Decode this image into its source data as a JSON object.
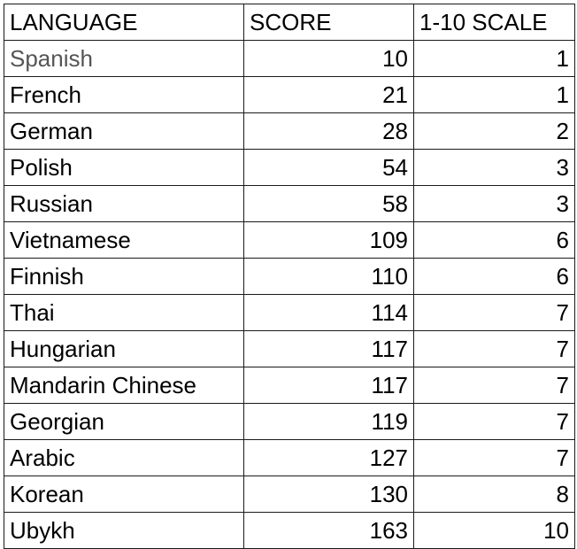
{
  "table": {
    "headers": [
      "LANGUAGE",
      "SCORE",
      "1-10 SCALE"
    ],
    "rows": [
      [
        "Spanish",
        "10",
        "1"
      ],
      [
        "French",
        "21",
        "1"
      ],
      [
        "German",
        "28",
        "2"
      ],
      [
        "Polish",
        "54",
        "3"
      ],
      [
        "Russian",
        "58",
        "3"
      ],
      [
        "Vietnamese",
        "109",
        "6"
      ],
      [
        "Finnish",
        "110",
        "6"
      ],
      [
        "Thai",
        "114",
        "7"
      ],
      [
        "Hungarian",
        "117",
        "7"
      ],
      [
        "Mandarin Chinese",
        "117",
        "7"
      ],
      [
        "Georgian",
        "119",
        "7"
      ],
      [
        "Arabic",
        "127",
        "7"
      ],
      [
        "Korean",
        "130",
        "8"
      ],
      [
        "Ubykh",
        "163",
        "10"
      ]
    ]
  }
}
